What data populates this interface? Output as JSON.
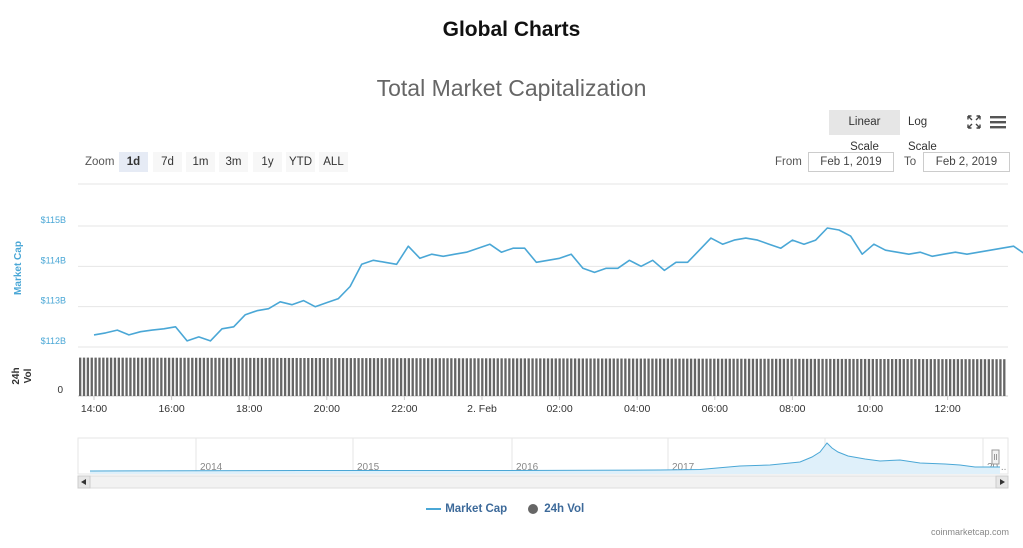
{
  "page": {
    "title": "Global Charts",
    "credit": "coinmarketcap.com"
  },
  "toolbar": {
    "linear_label": "Linear Scale",
    "log_label": "Log Scale",
    "fullscreen_icon": "fullscreen-icon",
    "menu_icon": "menu-icon"
  },
  "zoom": {
    "label": "Zoom",
    "buttons": [
      "1d",
      "7d",
      "1m",
      "3m",
      "1y",
      "YTD",
      "ALL"
    ],
    "active": "1d"
  },
  "range": {
    "from_label": "From",
    "from_value": "Feb 1, 2019",
    "to_label": "To",
    "to_value": "Feb 2, 2019"
  },
  "legend": {
    "market_cap": "Market Cap",
    "volume": "24h Vol"
  },
  "colors": {
    "market_cap": "#4aa7d6",
    "volume": "#555555",
    "legend_text": "#3d6a9a",
    "active_zoom": "#e6ebf5"
  },
  "chart_data": {
    "type": "line",
    "title": "Total Market Capitalization",
    "ylabel": "Market Cap",
    "ylim": [
      112,
      115
    ],
    "y_ticks": [
      112,
      113,
      114,
      115
    ],
    "y_tick_labels": [
      "$112B",
      "$113B",
      "$114B",
      "$115B"
    ],
    "x_tick_labels": [
      "14:00",
      "16:00",
      "18:00",
      "20:00",
      "22:00",
      "2. Feb",
      "02:00",
      "04:00",
      "06:00",
      "08:00",
      "10:00",
      "12:00"
    ],
    "series": [
      {
        "name": "Market Cap",
        "x_hours": [
          0.0,
          0.3,
          0.6,
          0.9,
          1.2,
          1.5,
          1.8,
          2.1,
          2.4,
          2.7,
          3.0,
          3.3,
          3.6,
          3.9,
          4.2,
          4.5,
          4.8,
          5.1,
          5.4,
          5.7,
          6.0,
          6.3,
          6.6,
          6.9,
          7.2,
          7.5,
          7.8,
          8.1,
          8.4,
          8.7,
          9.0,
          9.3,
          9.6,
          9.9,
          10.2,
          10.5,
          10.8,
          11.1,
          11.4,
          11.7,
          12.0,
          12.3,
          12.6,
          12.9,
          13.2,
          13.5,
          13.8,
          14.1,
          14.4,
          14.7,
          15.0,
          15.3,
          15.6,
          15.9,
          16.2,
          16.5,
          16.8,
          17.1,
          17.4,
          17.7,
          18.0,
          18.3,
          18.6,
          18.9,
          19.2,
          19.5,
          19.8,
          20.1,
          20.4,
          20.7,
          21.0,
          21.3,
          21.6,
          21.9,
          22.2,
          22.5,
          22.8,
          23.1,
          23.4,
          23.7,
          24.0,
          24.3,
          24.6
        ],
        "values": [
          112.3,
          112.35,
          112.42,
          112.3,
          112.38,
          112.42,
          112.45,
          112.5,
          112.15,
          112.25,
          112.15,
          112.45,
          112.5,
          112.8,
          112.9,
          112.95,
          113.12,
          113.05,
          113.15,
          113.0,
          113.1,
          113.2,
          113.5,
          114.05,
          114.15,
          114.1,
          114.05,
          114.5,
          114.2,
          114.3,
          114.25,
          114.3,
          114.35,
          114.45,
          114.55,
          114.35,
          114.45,
          114.45,
          114.1,
          114.15,
          114.2,
          114.3,
          113.95,
          113.85,
          113.95,
          113.95,
          114.15,
          114.0,
          114.15,
          113.9,
          114.1,
          114.1,
          114.4,
          114.7,
          114.55,
          114.65,
          114.7,
          114.65,
          114.55,
          114.45,
          114.65,
          114.55,
          114.65,
          114.95,
          114.9,
          114.75,
          114.3,
          114.55,
          114.4,
          114.35,
          114.3,
          114.35,
          114.25,
          114.3,
          114.35,
          114.3,
          114.35,
          114.4,
          114.45,
          114.5,
          114.3,
          114.25,
          114.0
        ]
      },
      {
        "name": "24h Vol",
        "bar_count": 240,
        "values_relative": [
          0.96,
          0.92
        ]
      }
    ],
    "navigator": {
      "x_tick_labels": [
        "2014",
        "2015",
        "2016",
        "2017",
        "2018",
        "20..."
      ]
    },
    "volume_axis_label": "24h Vol",
    "volume_tick_label": "0",
    "grid": true,
    "legend_position": "bottom-center"
  }
}
